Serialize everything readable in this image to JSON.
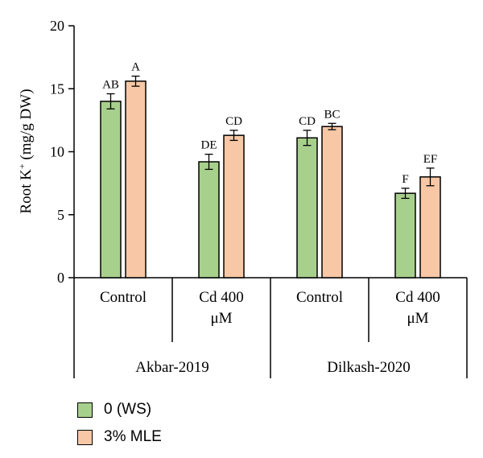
{
  "chart_data": {
    "type": "bar",
    "ylabel_main": "Root K",
    "ylabel_sup": "+",
    "ylabel_tail": " (mg/g DW)",
    "ylim": [
      0,
      20
    ],
    "yticks": [
      "0",
      "5",
      "10",
      "15",
      "20"
    ],
    "categories": [
      {
        "label": [
          "Control"
        ],
        "group": "Akbar-2019"
      },
      {
        "label": [
          "Cd 400",
          "μM"
        ],
        "group": "Akbar-2019"
      },
      {
        "label": [
          "Control"
        ],
        "group": "Dilkash-2020"
      },
      {
        "label": [
          "Cd 400",
          "μM"
        ],
        "group": "Dilkash-2020"
      }
    ],
    "groups": [
      "Akbar-2019",
      "Dilkash-2020"
    ],
    "series": [
      {
        "name": "0 (WS)",
        "color": "#a8d08d",
        "values": [
          14.0,
          9.2,
          11.1,
          6.7
        ],
        "errors": [
          0.6,
          0.6,
          0.6,
          0.4
        ],
        "letters": [
          "AB",
          "DE",
          "CD",
          "F"
        ]
      },
      {
        "name": "3% MLE",
        "color": "#f8c8a6",
        "values": [
          15.6,
          11.3,
          12.0,
          8.0
        ],
        "errors": [
          0.4,
          0.4,
          0.25,
          0.7
        ],
        "letters": [
          "A",
          "CD",
          "BC",
          "EF"
        ]
      }
    ],
    "legend_position": "bottom-left",
    "grid": false
  }
}
